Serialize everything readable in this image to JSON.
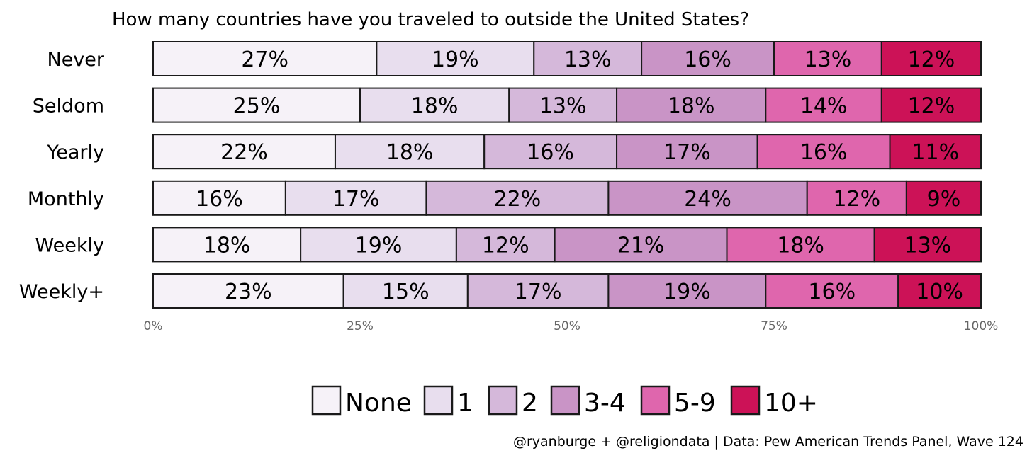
{
  "chart_data": {
    "type": "bar",
    "orientation": "horizontal-stacked-100",
    "title": "How many countries have you traveled to outside the United States?",
    "categories": [
      "Never",
      "Seldom",
      "Yearly",
      "Monthly",
      "Weekly",
      "Weekly+"
    ],
    "series": [
      {
        "name": "None",
        "color": "#f6f2f8",
        "values": [
          27,
          25,
          22,
          16,
          18,
          23
        ]
      },
      {
        "name": "1",
        "color": "#e8deee",
        "values": [
          19,
          18,
          18,
          17,
          19,
          15
        ]
      },
      {
        "name": "2",
        "color": "#d5b8da",
        "values": [
          13,
          13,
          16,
          22,
          12,
          17
        ]
      },
      {
        "name": "3-4",
        "color": "#c994c6",
        "values": [
          16,
          18,
          17,
          24,
          21,
          19
        ]
      },
      {
        "name": "5-9",
        "color": "#df66ad",
        "values": [
          13,
          14,
          16,
          12,
          18,
          16
        ]
      },
      {
        "name": "10+",
        "color": "#cc1257",
        "values": [
          12,
          12,
          11,
          9,
          13,
          10
        ]
      }
    ],
    "xlim": [
      0,
      100
    ],
    "xticks": [
      "0%",
      "25%",
      "50%",
      "75%",
      "100%"
    ],
    "value_suffix": "%",
    "legend_position": "bottom",
    "grid": false
  },
  "caption": "@ryanburge + @religiondata | Data: Pew American Trends Panel, Wave 124"
}
